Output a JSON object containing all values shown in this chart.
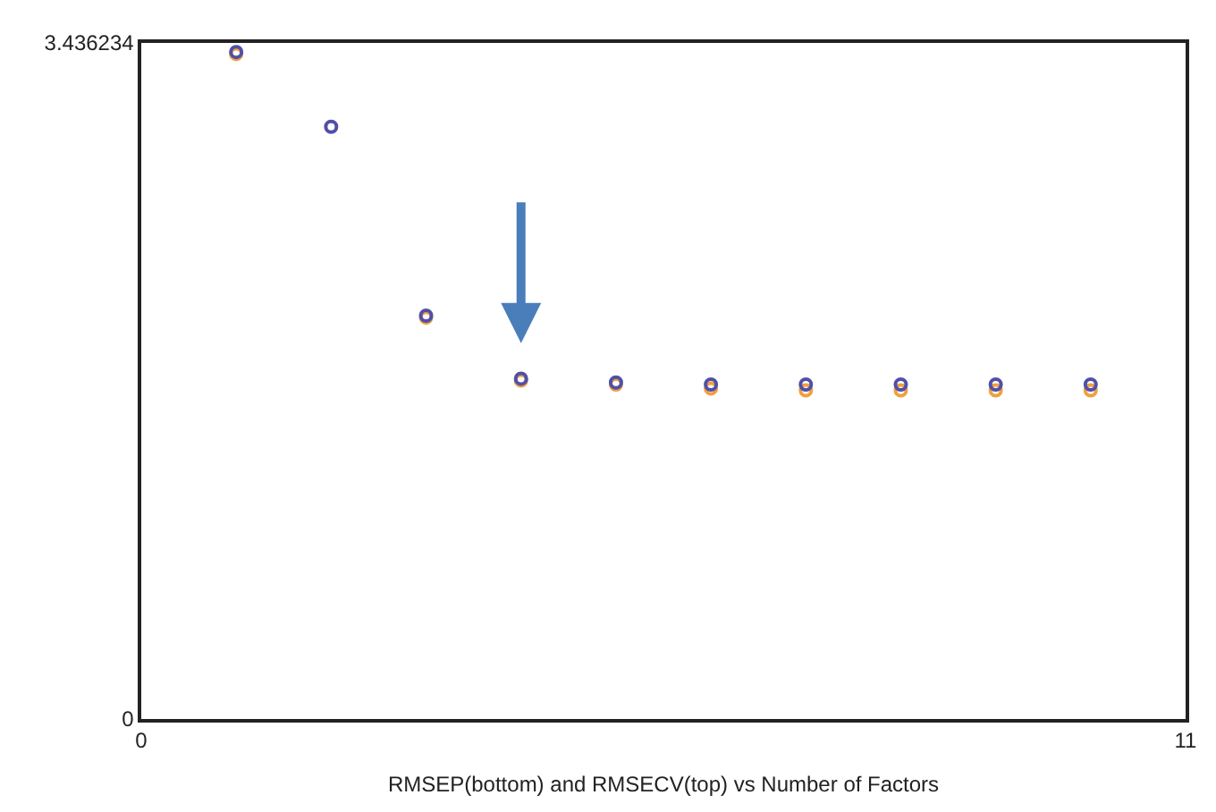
{
  "chart_data": {
    "type": "scatter",
    "xlabel": "RMSEP(bottom) and RMSECV(top) vs Number of Factors",
    "x": [
      1,
      2,
      3,
      4,
      5,
      6,
      7,
      8,
      9,
      10
    ],
    "series": [
      {
        "color": "#f0a040",
        "values": [
          3.38,
          null,
          2.04,
          1.72,
          1.7,
          1.68,
          1.67,
          1.67,
          1.67,
          1.67
        ]
      },
      {
        "color": "#5050a8",
        "values": [
          3.39,
          3.01,
          2.05,
          1.73,
          1.71,
          1.7,
          1.7,
          1.7,
          1.7,
          1.7
        ]
      }
    ],
    "xlim": [
      0,
      11
    ],
    "xticks": [
      0,
      11
    ],
    "ylim": [
      0,
      3.436234
    ],
    "yticks": [
      0,
      3.436234
    ],
    "marker": "circle"
  }
}
